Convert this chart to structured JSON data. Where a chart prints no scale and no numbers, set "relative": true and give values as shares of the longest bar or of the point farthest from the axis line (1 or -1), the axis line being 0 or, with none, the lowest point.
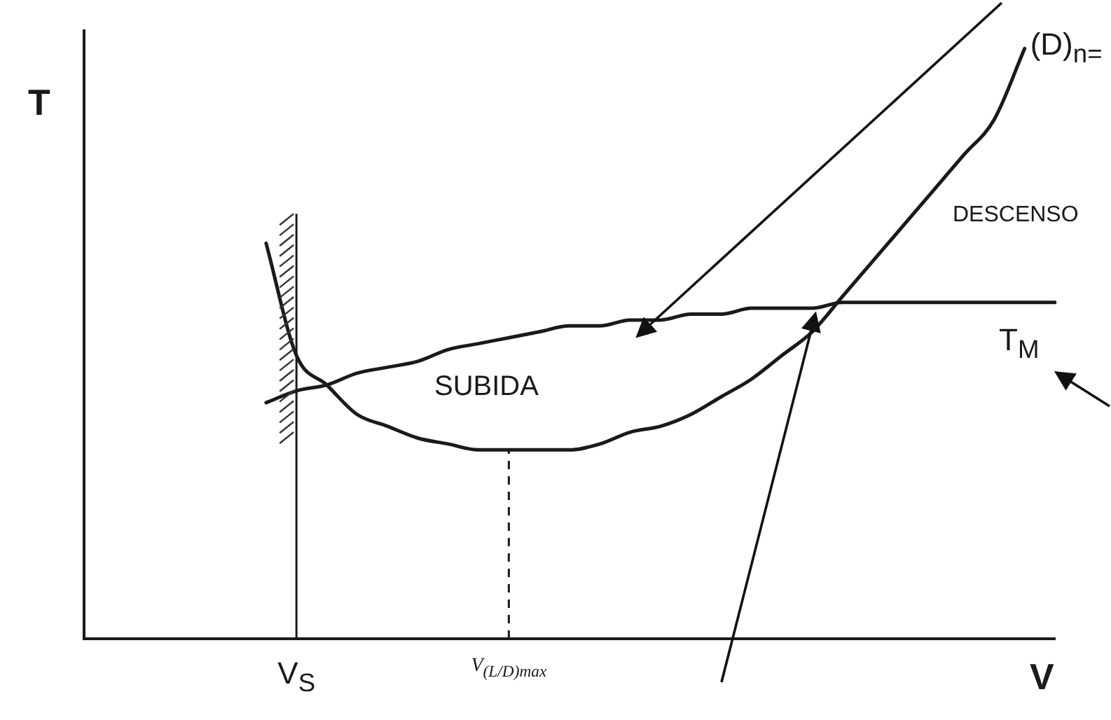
{
  "chart_data": {
    "type": "line",
    "relative": true,
    "xlabel": "V",
    "ylabel": "T",
    "legend": false,
    "grid": false,
    "marker": "none",
    "line_style": "solid",
    "categories": [
      null,
      null,
      null,
      null,
      null,
      null,
      null,
      "V$_{S}$",
      null,
      null,
      null,
      null,
      null,
      null,
      "V$_{(L/D)max}$",
      null,
      null,
      null,
      null,
      null,
      null,
      null,
      null,
      null,
      null,
      null,
      null,
      null,
      null,
      null,
      null,
      null,
      null
    ],
    "series": [
      {
        "name": "(D)$_{n=}$",
        "color": "#1a1a1a",
        "values": [
          null,
          null,
          null,
          null,
          null,
          null,
          0.67,
          0.48,
          0.43,
          0.38,
          0.36,
          0.34,
          0.33,
          0.32,
          0.32,
          0.32,
          0.32,
          0.33,
          0.35,
          0.36,
          0.38,
          0.41,
          0.44,
          0.48,
          0.52,
          0.58,
          0.64,
          0.7,
          0.76,
          0.82,
          0.88,
          1,
          null
        ]
      },
      {
        "name": "T$_{M}$",
        "color": "#1a1a1a",
        "values": [
          null,
          null,
          null,
          null,
          null,
          null,
          0.4,
          0.42,
          0.43,
          0.45,
          0.46,
          0.47,
          0.49,
          0.5,
          0.51,
          0.52,
          0.53,
          0.53,
          0.54,
          0.54,
          0.55,
          0.55,
          0.56,
          0.56,
          0.56,
          0.57,
          0.57,
          0.57,
          0.57,
          0.57,
          0.57,
          0.57,
          0.57
        ]
      }
    ],
    "ref_lines": [
      {
        "axis": "x",
        "value": "V$_{S}$",
        "color": "#1a1a1a",
        "line_style": "solid"
      },
      {
        "axis": "x",
        "value": "V$_{(L/D)max}$",
        "color": "#1a1a1a",
        "line_style": "dashed"
      }
    ],
    "annotations": [
      "SUBIDA",
      "DESCENSO"
    ]
  }
}
